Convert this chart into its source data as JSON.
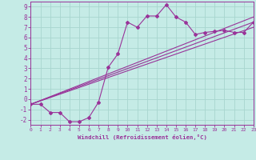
{
  "bg_color": "#c5ebe6",
  "grid_color": "#a8d5cf",
  "line_color": "#993399",
  "xlabel": "Windchill (Refroidissement éolien,°C)",
  "xlim": [
    0,
    23
  ],
  "ylim": [
    -2.5,
    9.5
  ],
  "xticks": [
    0,
    1,
    2,
    3,
    4,
    5,
    6,
    7,
    8,
    9,
    10,
    11,
    12,
    13,
    14,
    15,
    16,
    17,
    18,
    19,
    20,
    21,
    22,
    23
  ],
  "yticks": [
    -2,
    -1,
    0,
    1,
    2,
    3,
    4,
    5,
    6,
    7,
    8,
    9
  ],
  "data_x": [
    0,
    1,
    2,
    3,
    4,
    5,
    6,
    7,
    8,
    9,
    10,
    11,
    12,
    13,
    14,
    15,
    16,
    17,
    18,
    19,
    20,
    21,
    22,
    23
  ],
  "data_y": [
    -0.5,
    -0.5,
    -1.3,
    -1.3,
    -2.2,
    -2.2,
    -1.8,
    -0.3,
    3.1,
    4.4,
    7.5,
    7.0,
    8.1,
    8.1,
    9.2,
    8.0,
    7.5,
    6.3,
    6.5,
    6.6,
    6.7,
    6.5,
    6.5,
    7.5
  ],
  "ref_lines": [
    [
      0,
      -0.5,
      23,
      8.0
    ],
    [
      0,
      -0.5,
      23,
      7.0
    ],
    [
      0,
      -0.5,
      23,
      7.5
    ]
  ]
}
